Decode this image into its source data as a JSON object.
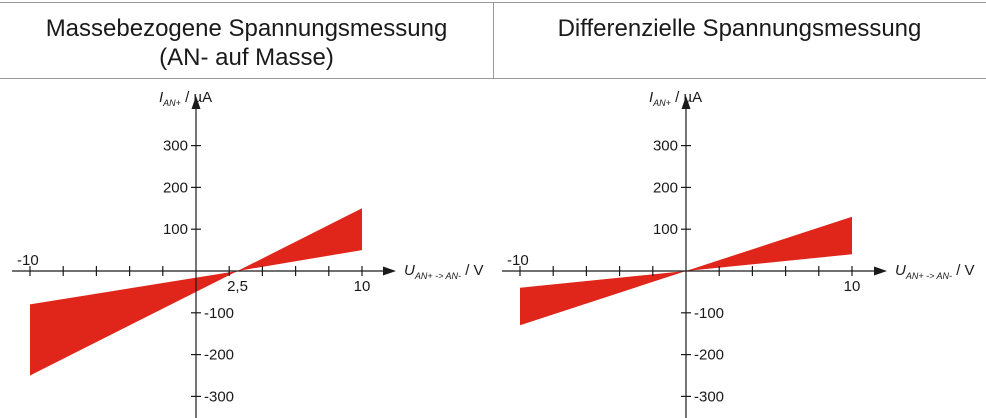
{
  "panels": [
    {
      "title_lines": [
        "Massebezogene Spannungsmessung",
        "(AN- auf Masse)"
      ]
    },
    {
      "title_lines": [
        "Differenzielle Spannungsmessung"
      ]
    }
  ],
  "colors": {
    "band": "#e0261b",
    "axis": "#1a1a1a",
    "rule": "#9a9a9a"
  },
  "chart_data": [
    {
      "type": "area",
      "title": "Massebezogene Spannungsmessung (AN- auf Masse)",
      "xlabel": {
        "main": "U",
        "sub": "AN+ -> AN-",
        "unit": " / V"
      },
      "ylabel": {
        "main": "I",
        "sub": "AN+",
        "unit": " / µA"
      },
      "xlim": [
        -10,
        10
      ],
      "ylim": [
        -300,
        300
      ],
      "x_ticks": [
        -10,
        -8,
        -6,
        -4,
        -2,
        0,
        2,
        4,
        6,
        8,
        10
      ],
      "x_tick_labels": [
        {
          "value": -10,
          "text": "-10"
        },
        {
          "value": 2.5,
          "text": "2,5"
        },
        {
          "value": 10,
          "text": "10"
        }
      ],
      "y_ticks": [
        -300,
        -200,
        -100,
        100,
        200,
        300
      ],
      "y_tick_labels": [
        "-300",
        "-200",
        "-100",
        "100",
        "200",
        "300"
      ],
      "band": {
        "x": [
          -10,
          2.5,
          10
        ],
        "upper": [
          -80,
          0,
          150
        ],
        "lower": [
          -250,
          0,
          50
        ]
      }
    },
    {
      "type": "area",
      "title": "Differenzielle Spannungsmessung",
      "xlabel": {
        "main": "U",
        "sub": "AN+ -> AN-",
        "unit": " / V"
      },
      "ylabel": {
        "main": "I",
        "sub": "AN+",
        "unit": " / µA"
      },
      "xlim": [
        -10,
        10
      ],
      "ylim": [
        -300,
        300
      ],
      "x_ticks": [
        -10,
        -8,
        -6,
        -4,
        -2,
        0,
        2,
        4,
        6,
        8,
        10
      ],
      "x_tick_labels": [
        {
          "value": -10,
          "text": "-10"
        },
        {
          "value": 10,
          "text": "10"
        }
      ],
      "y_ticks": [
        -300,
        -200,
        -100,
        100,
        200,
        300
      ],
      "y_tick_labels": [
        "-300",
        "-200",
        "-100",
        "100",
        "200",
        "300"
      ],
      "band": {
        "x": [
          -10,
          0,
          10
        ],
        "upper": [
          -40,
          0,
          130
        ],
        "lower": [
          -130,
          0,
          40
        ]
      }
    }
  ]
}
